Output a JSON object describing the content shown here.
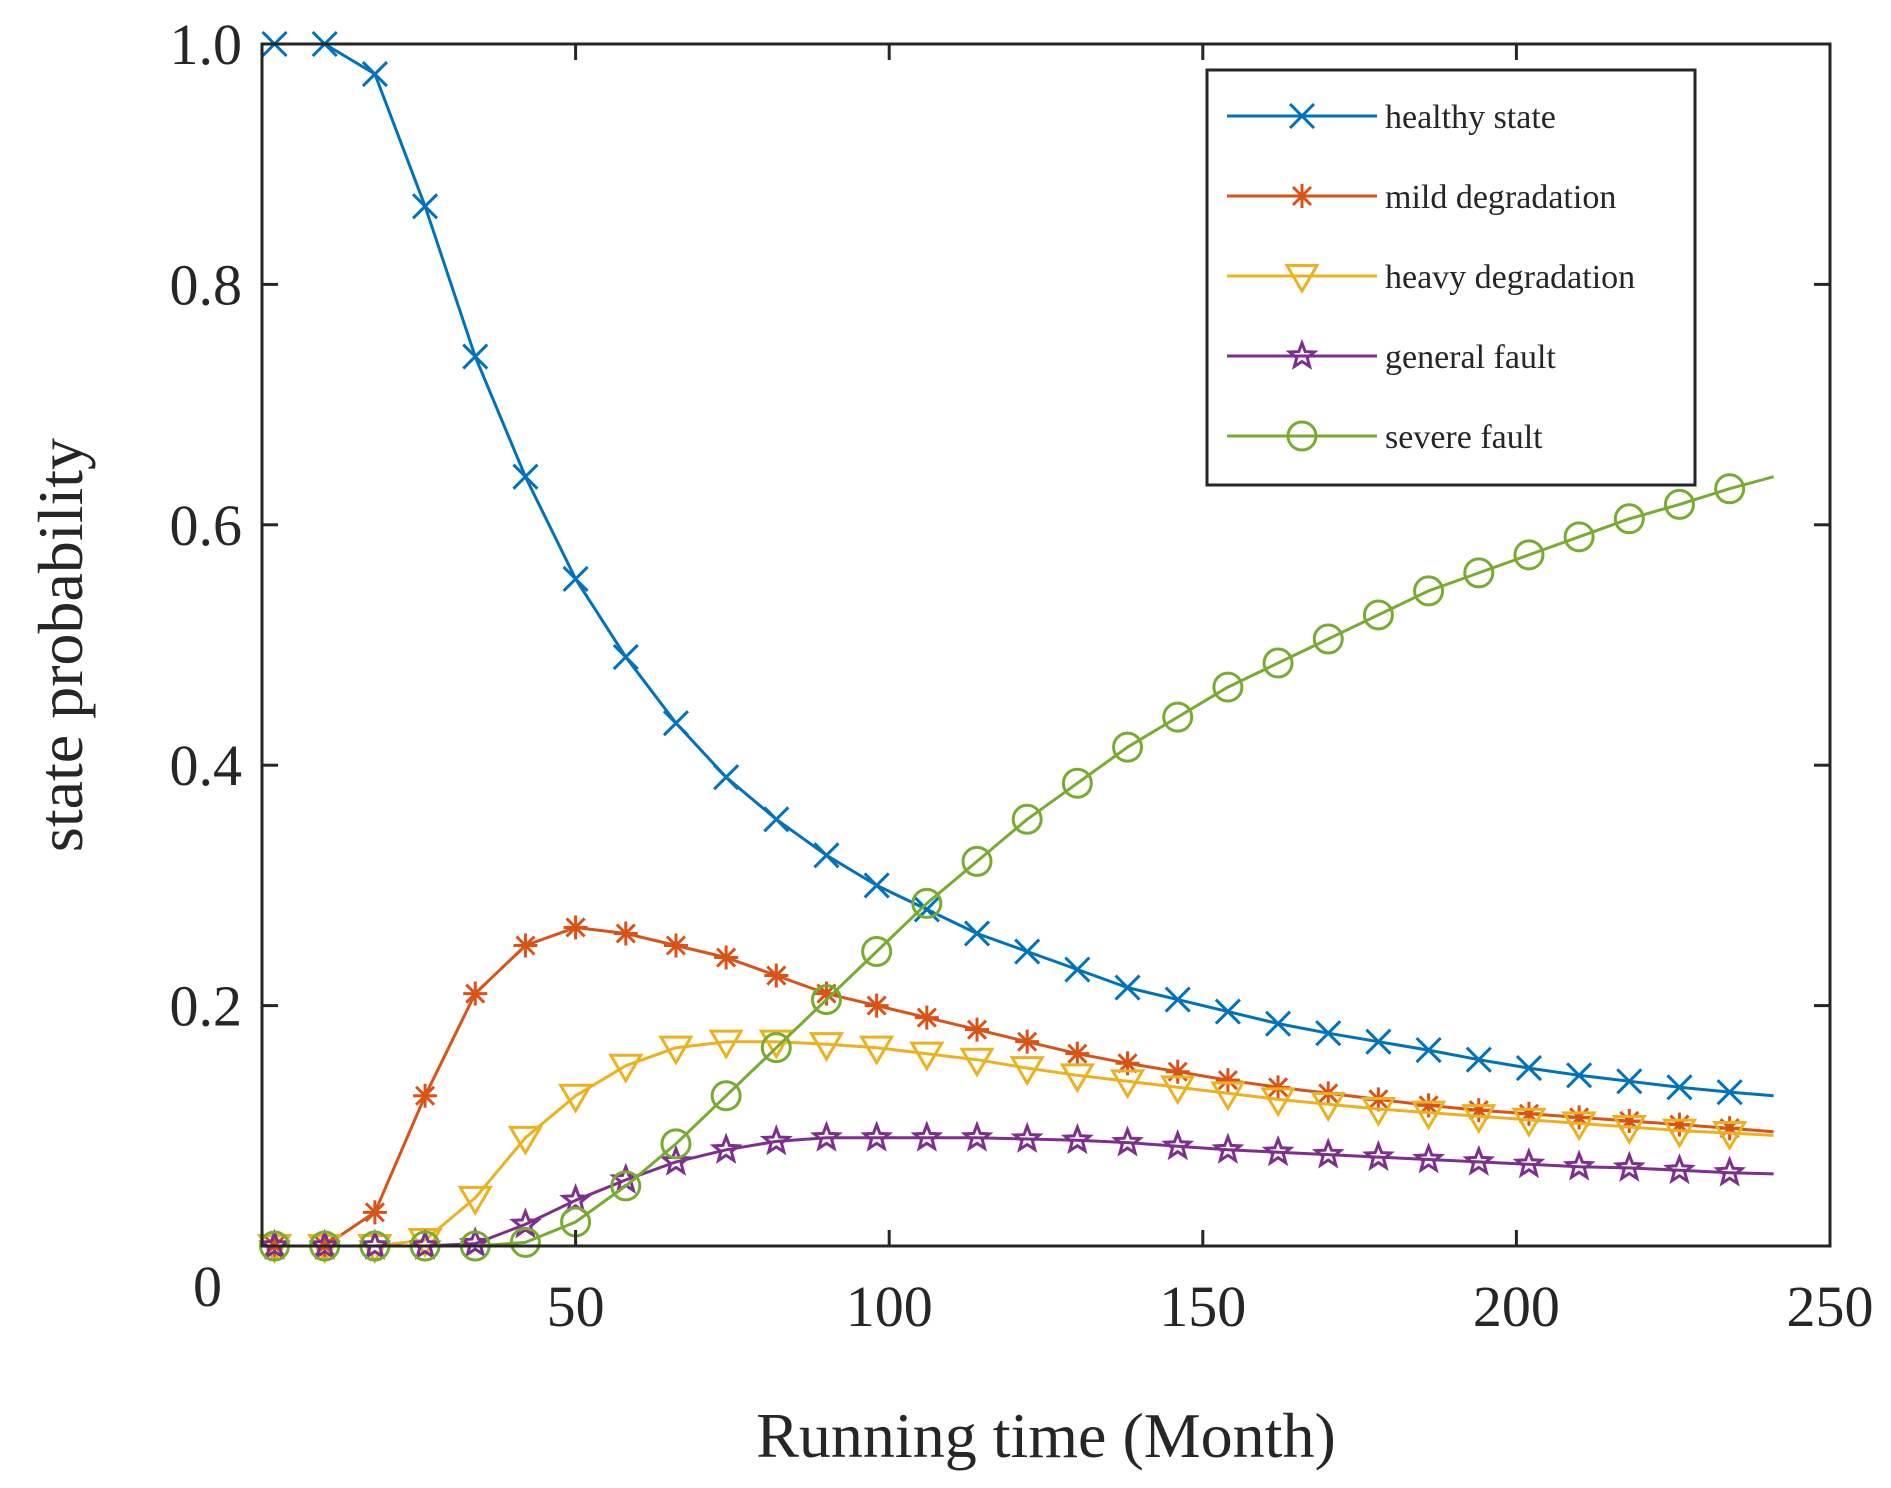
{
  "chart_data": {
    "type": "line",
    "xlabel": "Running time  (Month)",
    "ylabel": "state probability",
    "xlim": [
      0,
      250
    ],
    "ylim": [
      0,
      1.0
    ],
    "xticks": [
      50,
      100,
      150,
      200,
      250
    ],
    "yticks": [
      0,
      0.2,
      0.4,
      0.6,
      0.8,
      1.0
    ],
    "xtick_labels": [
      "50",
      "100",
      "150",
      "200",
      "250"
    ],
    "ytick_labels": [
      "0",
      "0.2",
      "0.4",
      "0.6",
      "0.8",
      "1.0"
    ],
    "grid": false,
    "legend_position": "top-right",
    "x": [
      2,
      10,
      18,
      26,
      34,
      42,
      50,
      58,
      66,
      74,
      82,
      90,
      98,
      106,
      114,
      122,
      130,
      138,
      146,
      154,
      162,
      170,
      178,
      186,
      194,
      202,
      210,
      218,
      226,
      234
    ],
    "x_end": 241,
    "series": [
      {
        "name": "healthy state",
        "color": "#0072BD",
        "marker": "x",
        "values": [
          1.0,
          1.0,
          0.975,
          0.865,
          0.74,
          0.64,
          0.555,
          0.49,
          0.435,
          0.39,
          0.355,
          0.325,
          0.3,
          0.28,
          0.26,
          0.245,
          0.23,
          0.215,
          0.205,
          0.195,
          0.185,
          0.177,
          0.17,
          0.163,
          0.155,
          0.148,
          0.142,
          0.137,
          0.132,
          0.128
        ],
        "end_value": 0.125
      },
      {
        "name": "mild degradation",
        "color": "#D95319",
        "marker": "asterisk",
        "values": [
          0.0,
          0.0,
          0.028,
          0.125,
          0.21,
          0.25,
          0.265,
          0.26,
          0.25,
          0.24,
          0.225,
          0.21,
          0.2,
          0.19,
          0.18,
          0.17,
          0.16,
          0.152,
          0.145,
          0.138,
          0.132,
          0.127,
          0.122,
          0.117,
          0.113,
          0.11,
          0.107,
          0.104,
          0.101,
          0.098
        ],
        "end_value": 0.095
      },
      {
        "name": "heavy degradation",
        "color": "#EDB120",
        "marker": "triangle-down",
        "values": [
          0.0,
          0.0,
          0.0,
          0.005,
          0.04,
          0.09,
          0.125,
          0.15,
          0.165,
          0.17,
          0.17,
          0.168,
          0.165,
          0.16,
          0.155,
          0.148,
          0.142,
          0.137,
          0.132,
          0.127,
          0.122,
          0.118,
          0.114,
          0.111,
          0.108,
          0.105,
          0.102,
          0.099,
          0.096,
          0.094
        ],
        "end_value": 0.092
      },
      {
        "name": "general fault",
        "color": "#7E2F8E",
        "marker": "pentagram",
        "values": [
          0.0,
          0.0,
          0.0,
          0.0,
          0.002,
          0.018,
          0.038,
          0.055,
          0.07,
          0.08,
          0.087,
          0.09,
          0.09,
          0.09,
          0.09,
          0.089,
          0.088,
          0.086,
          0.083,
          0.08,
          0.078,
          0.076,
          0.074,
          0.072,
          0.07,
          0.068,
          0.066,
          0.065,
          0.063,
          0.061
        ],
        "end_value": 0.06
      },
      {
        "name": "severe fault",
        "color": "#77AC30",
        "marker": "circle",
        "values": [
          0.0,
          0.0,
          0.0,
          0.0,
          0.0,
          0.003,
          0.02,
          0.05,
          0.085,
          0.125,
          0.165,
          0.205,
          0.245,
          0.285,
          0.32,
          0.355,
          0.385,
          0.415,
          0.44,
          0.465,
          0.485,
          0.505,
          0.525,
          0.545,
          0.56,
          0.575,
          0.59,
          0.605,
          0.617,
          0.63
        ],
        "end_value": 0.64
      }
    ]
  }
}
